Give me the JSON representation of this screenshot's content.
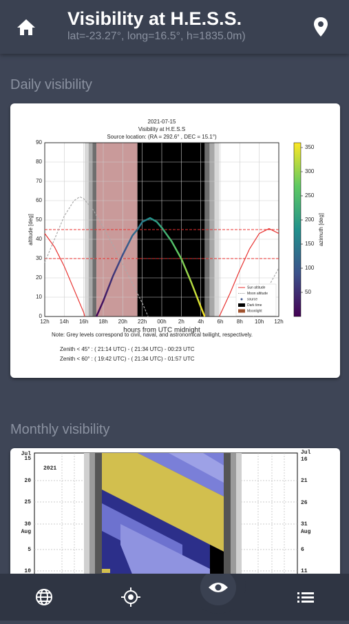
{
  "header": {
    "title": "Visibility at H.E.S.S.",
    "subtitle": "lat=-23.27°, long=16.5°, h=1835.0m)"
  },
  "sections": [
    {
      "title": "Daily visibility"
    },
    {
      "title": "Monthly visibility"
    }
  ],
  "daily_plot": {
    "type": "line",
    "title": [
      "2021-07-15",
      "Visibility at H.E.S.S",
      "Source location: (RA = 292.6° , DEC = 15.1°)"
    ],
    "xlabel": "hours from UTC midnight",
    "ylabel": "altitude [deg]",
    "y2label": "azimuth [deg]",
    "xlim": [
      12,
      36
    ],
    "ylim": [
      0,
      90
    ],
    "y2lim": [
      0,
      360
    ],
    "xticks": [
      {
        "value": 12,
        "label": "12h"
      },
      {
        "value": 14,
        "label": "14h"
      },
      {
        "value": 16,
        "label": "16h"
      },
      {
        "value": 18,
        "label": "18h"
      },
      {
        "value": 20,
        "label": "20h"
      },
      {
        "value": 22,
        "label": "22h"
      },
      {
        "value": 24,
        "label": "00h"
      },
      {
        "value": 26,
        "label": "2h"
      },
      {
        "value": 28,
        "label": "4h"
      },
      {
        "value": 30,
        "label": "6h"
      },
      {
        "value": 32,
        "label": "8h"
      },
      {
        "value": 34,
        "label": "10h"
      },
      {
        "value": 36,
        "label": "12h"
      }
    ],
    "yticks": [
      0,
      10,
      20,
      30,
      40,
      50,
      60,
      70,
      80,
      90
    ],
    "y2ticks": [
      50,
      100,
      150,
      200,
      250,
      300,
      350
    ],
    "grid": true,
    "colormap": [
      "#440154",
      "#3b528b",
      "#21918c",
      "#5ec962",
      "#fde725"
    ],
    "twilight_colors": [
      "#d8d8d8",
      "#a8a8a8",
      "#6e6e6e"
    ],
    "twilight_evening": [
      16.1,
      16.5,
      16.9,
      17.3
    ],
    "twilight_morning": [
      28.4,
      28.9,
      29.4,
      29.9
    ],
    "bands": [
      {
        "name": "Dark time",
        "color": "#000000",
        "range": [
          21.5,
          28.4
        ]
      },
      {
        "name": "Moonlight",
        "color": "#c99a9a",
        "range": [
          17.3,
          21.5
        ]
      }
    ],
    "altitude_limits": [
      45,
      30
    ],
    "limit_color": "#e8312f",
    "series": [
      {
        "name": "Sun altitude",
        "color": "#e8312f",
        "style": "solid",
        "x": [
          12,
          13,
          14,
          15,
          16,
          16.1,
          23,
          29.9,
          31,
          32,
          33,
          34,
          35,
          36
        ],
        "values": [
          43,
          36,
          26,
          14,
          2,
          0,
          null,
          0,
          12,
          24,
          35,
          43,
          45.5,
          43
        ]
      },
      {
        "name": "Moon altitude",
        "color": "#aaaaaa",
        "style": "dashed",
        "x": [
          12,
          13,
          14,
          15,
          15.6,
          16,
          17,
          18,
          19,
          20,
          21,
          22,
          22.6,
          23,
          33.4,
          34,
          35,
          36
        ],
        "values": [
          28,
          40,
          52,
          60,
          62,
          61,
          55,
          46,
          37,
          27,
          17,
          7,
          0,
          null,
          0,
          6,
          16,
          25
        ]
      },
      {
        "name": "source",
        "color": "gradient",
        "style": "solid",
        "x": [
          17.3,
          18,
          19,
          20,
          21,
          21.5,
          22,
          22.8,
          23.5,
          24,
          25,
          26,
          27,
          28,
          28.4
        ],
        "values": [
          0,
          8,
          21,
          32,
          42,
          45,
          49,
          51,
          49,
          46,
          39,
          30,
          18,
          5,
          0
        ]
      }
    ],
    "note": "Note: Grey levels correspond to civil, naval, and astronomical twilight, respectively.",
    "zenith": [
      "Zenith < 45° :  ( 21:14 UTC) - ( 21:34 UTC) -  00:23 UTC",
      "Zenith < 60° :  ( 19:42 UTC) - ( 21:34 UTC) -  01:57 UTC"
    ]
  },
  "monthly_plot": {
    "year": "2021",
    "left_labels": [
      "Jul",
      "15",
      "20",
      "25",
      "30",
      "Aug",
      "5",
      "10"
    ],
    "right_labels": [
      "Jul",
      "16",
      "21",
      "26",
      "31",
      "Aug",
      "6",
      "11"
    ]
  }
}
